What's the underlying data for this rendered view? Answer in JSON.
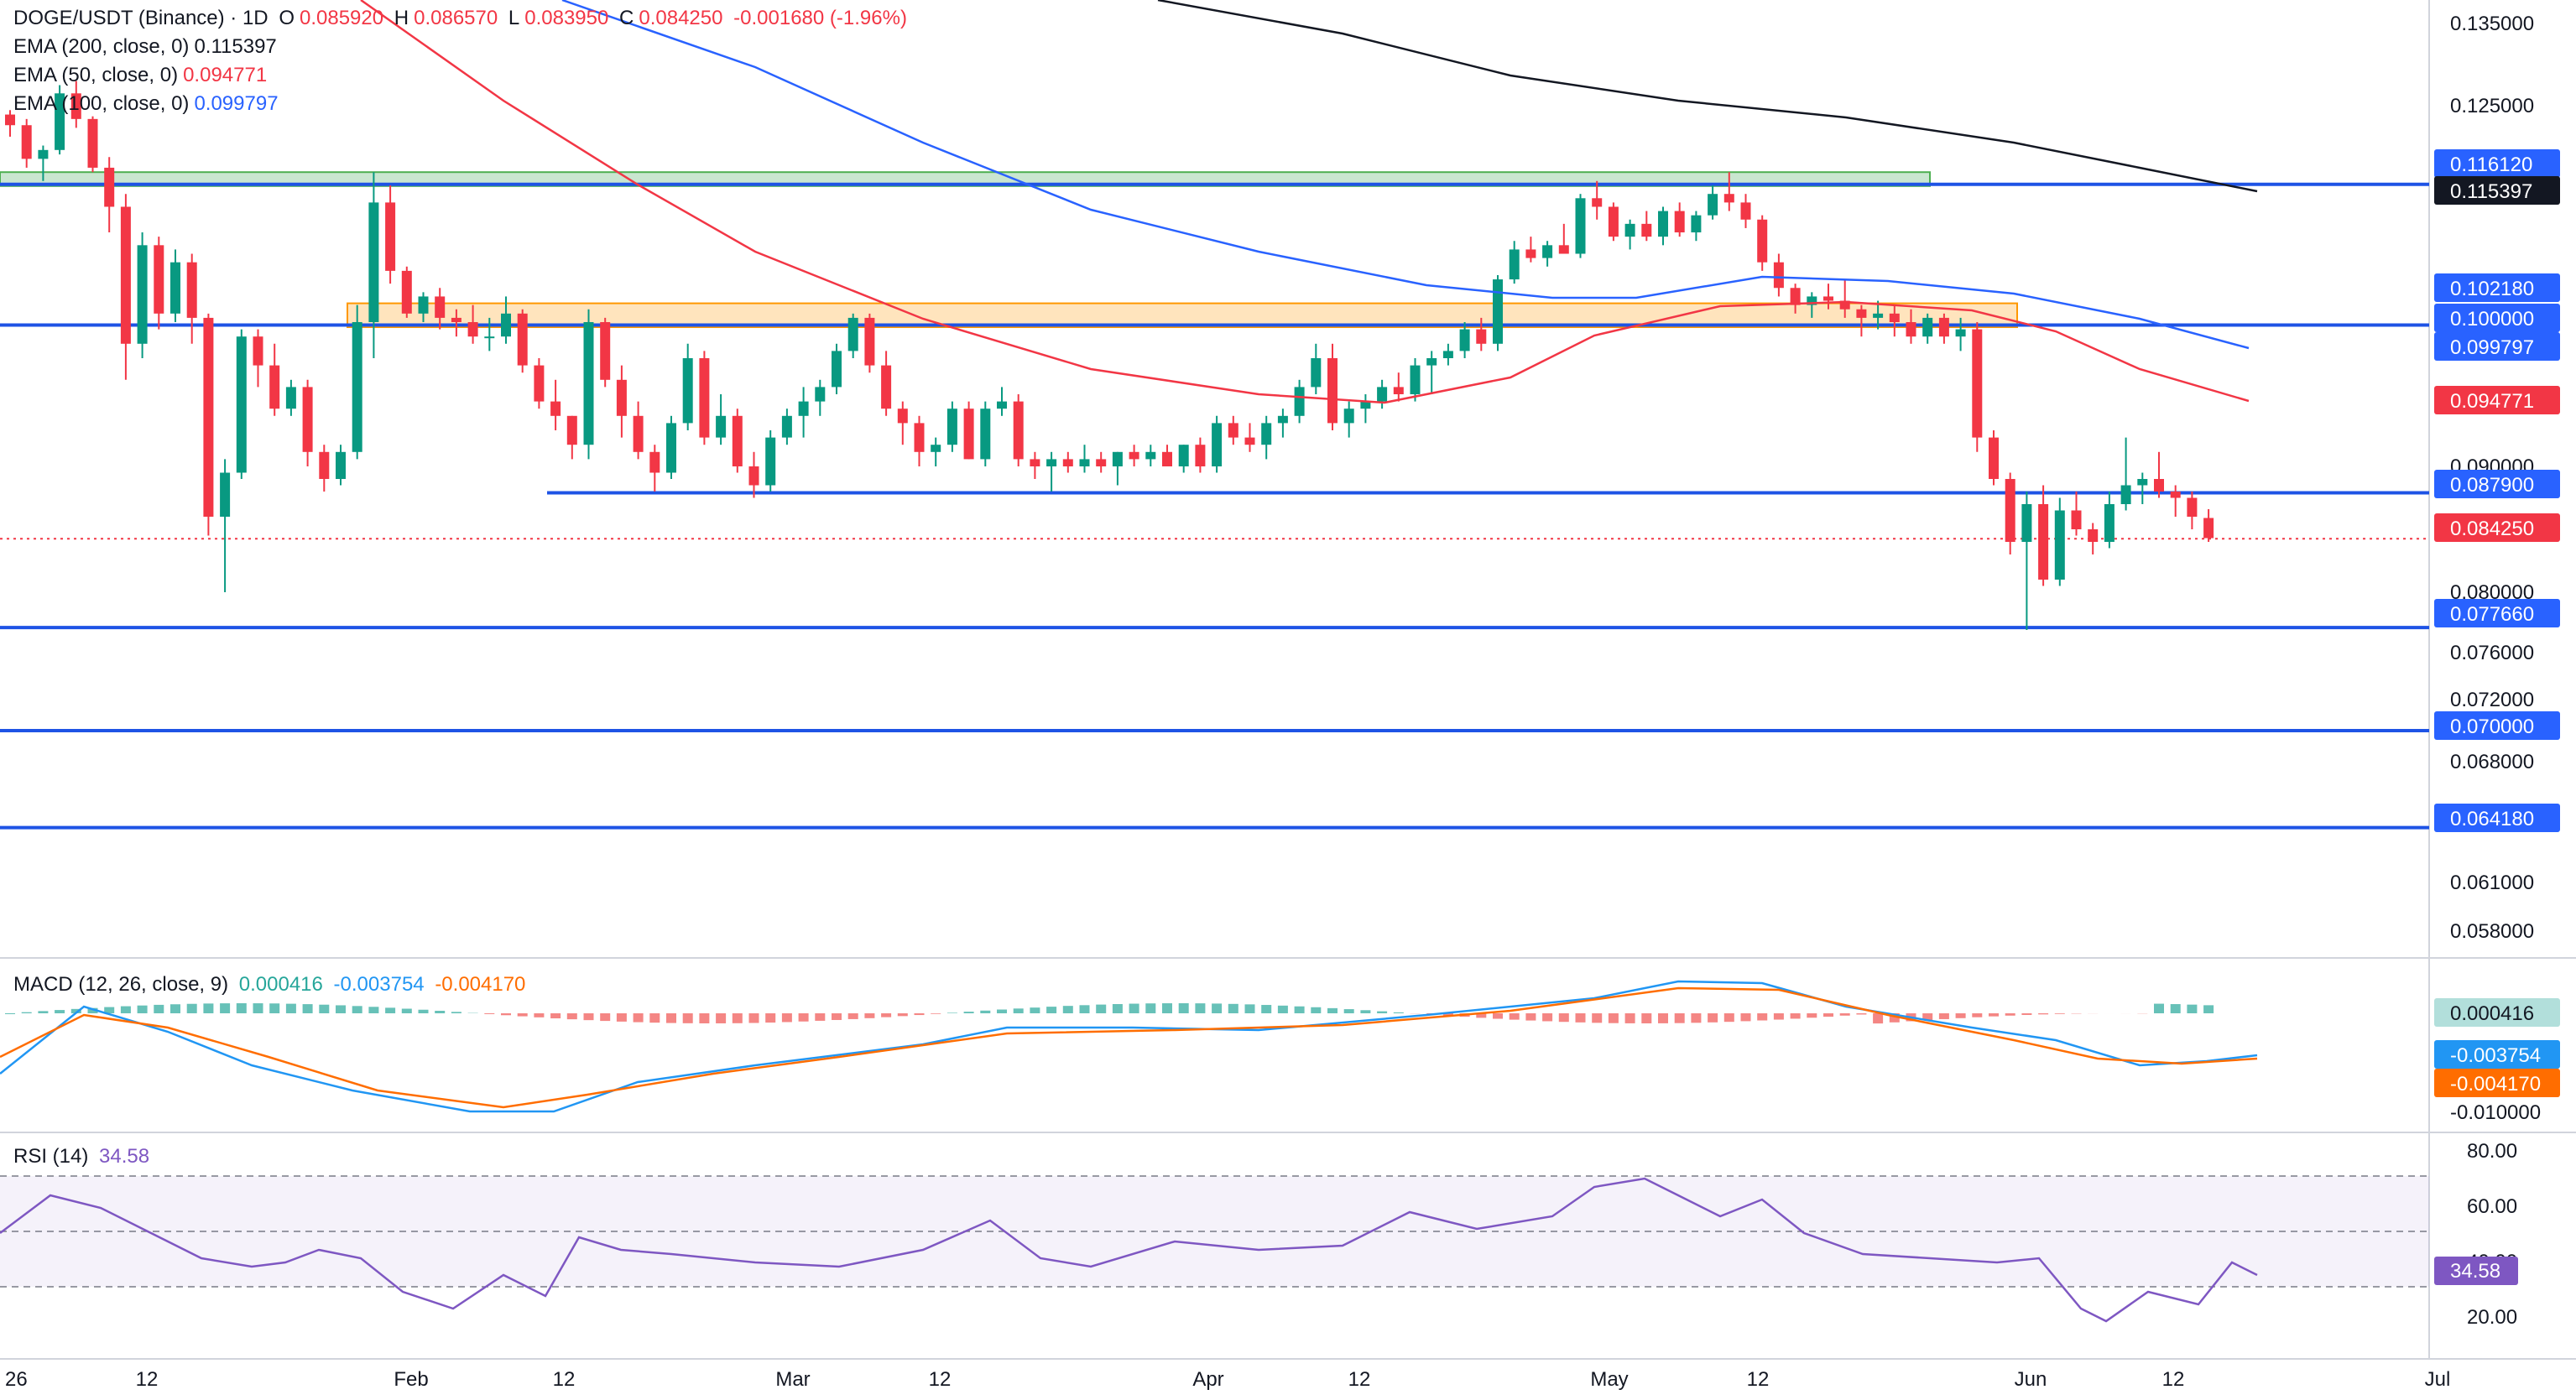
{
  "header": {
    "symbol": "DOGE/USDT (Binance) · 1D",
    "open_label": "O",
    "open": "0.085920",
    "high_label": "H",
    "high": "0.086570",
    "low_label": "L",
    "low": "0.083950",
    "close_label": "C",
    "close": "0.084250",
    "change": "-0.001680 (-1.96%)"
  },
  "indicators": {
    "ema200": {
      "label": "EMA (200, close, 0)",
      "value": "0.115397",
      "color": "#131722"
    },
    "ema50": {
      "label": "EMA (50, close, 0)",
      "value": "0.094771",
      "color": "#f23645"
    },
    "ema100": {
      "label": "EMA (100, close, 0)",
      "value": "0.099797",
      "color": "#2962ff"
    },
    "macd": {
      "label": "MACD (12, 26, close, 9)",
      "hist": "0.000416",
      "macd": "-0.003754",
      "signal": "-0.004170"
    },
    "rsi": {
      "label": "RSI (14)",
      "value": "34.58"
    }
  },
  "colors": {
    "up": "#089981",
    "down": "#f23645",
    "level_line": "#1e53e5",
    "ema200": "#131722",
    "ema50": "#f23645",
    "ema100": "#2962ff",
    "macd_line": "#2196f3",
    "signal_line": "#ff6d00",
    "rsi_line": "#7e57c2",
    "supply_zone": "#a5d6b0",
    "demand_zone": "#ffd59a"
  },
  "price_axis": {
    "ticks": [
      "0.135000",
      "0.125000",
      "0.090000",
      "0.080000",
      "0.076000",
      "0.072000",
      "0.068000",
      "0.061000",
      "0.058000"
    ],
    "labels": [
      {
        "text": "0.116120",
        "bg": "#2962ff",
        "fg": "#ffffff"
      },
      {
        "text": "0.115397",
        "bg": "#131722",
        "fg": "#ffffff"
      },
      {
        "text": "0.102180",
        "bg": "#2962ff",
        "fg": "#ffffff"
      },
      {
        "text": "0.100000",
        "bg": "#2962ff",
        "fg": "#ffffff"
      },
      {
        "text": "0.099797",
        "bg": "#2962ff",
        "fg": "#ffffff"
      },
      {
        "text": "0.094771",
        "bg": "#f23645",
        "fg": "#ffffff"
      },
      {
        "text": "0.087900",
        "bg": "#2962ff",
        "fg": "#ffffff"
      },
      {
        "text": "0.084250",
        "bg": "#f23645",
        "fg": "#ffffff"
      },
      {
        "text": "0.077660",
        "bg": "#2962ff",
        "fg": "#ffffff"
      },
      {
        "text": "0.070000",
        "bg": "#2962ff",
        "fg": "#ffffff"
      },
      {
        "text": "0.064180",
        "bg": "#2962ff",
        "fg": "#ffffff"
      }
    ]
  },
  "macd_axis": {
    "labels": [
      {
        "text": "0.000416",
        "bg": "#b2dfdb",
        "fg": "#131722"
      },
      {
        "text": "-0.003754",
        "bg": "#2196f3",
        "fg": "#ffffff"
      },
      {
        "text": "-0.004170",
        "bg": "#ff6d00",
        "fg": "#ffffff"
      }
    ],
    "ticks": [
      "-0.010000"
    ]
  },
  "rsi_axis": {
    "ticks": [
      "80.00",
      "60.00",
      "40.00",
      "20.00"
    ],
    "label": "34.58"
  },
  "time_axis": [
    "26",
    "12",
    "Feb",
    "12",
    "Mar",
    "12",
    "Apr",
    "12",
    "May",
    "12",
    "Jun",
    "12",
    "Jul"
  ],
  "chart_data": {
    "type": "candlestick",
    "levels": [
      0.11612,
      0.10218,
      0.1,
      0.099797,
      0.0879,
      0.07766,
      0.07,
      0.06418
    ],
    "zones": [
      {
        "name": "supply",
        "from": 0.11612,
        "to": 0.1175
      },
      {
        "name": "demand",
        "from": 0.09965,
        "to": 0.1022
      }
    ],
    "candles": [
      [
        0.124,
        0.1245,
        0.1215,
        0.1228
      ],
      [
        0.1228,
        0.1235,
        0.118,
        0.119
      ],
      [
        0.119,
        0.1205,
        0.1165,
        0.12
      ],
      [
        0.12,
        0.1275,
        0.1195,
        0.1265
      ],
      [
        0.1265,
        0.128,
        0.1225,
        0.1235
      ],
      [
        0.1235,
        0.1238,
        0.1175,
        0.118
      ],
      [
        0.118,
        0.1192,
        0.1105,
        0.1135
      ],
      [
        0.1135,
        0.115,
        0.096,
        0.0985
      ],
      [
        0.0985,
        0.1105,
        0.0975,
        0.109
      ],
      [
        0.109,
        0.11,
        0.0995,
        0.101
      ],
      [
        0.101,
        0.1085,
        0.1,
        0.107
      ],
      [
        0.107,
        0.108,
        0.0985,
        0.1005
      ],
      [
        0.1005,
        0.101,
        0.0845,
        0.086
      ],
      [
        0.086,
        0.0905,
        0.08,
        0.0895
      ],
      [
        0.0895,
        0.0995,
        0.089,
        0.099
      ],
      [
        0.099,
        0.0995,
        0.0955,
        0.097
      ],
      [
        0.097,
        0.0985,
        0.0935,
        0.094
      ],
      [
        0.094,
        0.096,
        0.0935,
        0.0955
      ],
      [
        0.0955,
        0.096,
        0.09,
        0.091
      ],
      [
        0.091,
        0.0915,
        0.088,
        0.089
      ],
      [
        0.089,
        0.0915,
        0.0885,
        0.091
      ],
      [
        0.091,
        0.102,
        0.0905,
        0.1
      ],
      [
        0.1,
        0.1175,
        0.0975,
        0.114
      ],
      [
        0.114,
        0.116,
        0.1045,
        0.106
      ],
      [
        0.106,
        0.1065,
        0.1005,
        0.101
      ],
      [
        0.101,
        0.1035,
        0.1,
        0.103
      ],
      [
        0.103,
        0.104,
        0.0995,
        0.1005
      ],
      [
        0.1005,
        0.1015,
        0.099,
        0.1
      ],
      [
        0.1,
        0.102,
        0.0985,
        0.099
      ],
      [
        0.099,
        0.1005,
        0.098,
        0.099
      ],
      [
        0.099,
        0.103,
        0.0985,
        0.101
      ],
      [
        0.101,
        0.1015,
        0.0965,
        0.097
      ],
      [
        0.097,
        0.0975,
        0.094,
        0.0945
      ],
      [
        0.0945,
        0.096,
        0.0925,
        0.0935
      ],
      [
        0.0935,
        0.0935,
        0.0905,
        0.0915
      ],
      [
        0.0915,
        0.1015,
        0.0905,
        0.1
      ],
      [
        0.1,
        0.1005,
        0.0955,
        0.096
      ],
      [
        0.096,
        0.097,
        0.092,
        0.0935
      ],
      [
        0.0935,
        0.0945,
        0.0905,
        0.091
      ],
      [
        0.091,
        0.0915,
        0.088,
        0.0895
      ],
      [
        0.0895,
        0.0935,
        0.089,
        0.093
      ],
      [
        0.093,
        0.0985,
        0.0925,
        0.0975
      ],
      [
        0.0975,
        0.098,
        0.0915,
        0.092
      ],
      [
        0.092,
        0.095,
        0.0915,
        0.0935
      ],
      [
        0.0935,
        0.094,
        0.0895,
        0.09
      ],
      [
        0.09,
        0.091,
        0.0875,
        0.0885
      ],
      [
        0.0885,
        0.0925,
        0.088,
        0.092
      ],
      [
        0.092,
        0.094,
        0.0915,
        0.0935
      ],
      [
        0.0935,
        0.0955,
        0.092,
        0.0945
      ],
      [
        0.0945,
        0.096,
        0.0935,
        0.0955
      ],
      [
        0.0955,
        0.0985,
        0.095,
        0.098
      ],
      [
        0.098,
        0.101,
        0.0975,
        0.1005
      ],
      [
        0.1005,
        0.101,
        0.0965,
        0.097
      ],
      [
        0.097,
        0.098,
        0.0935,
        0.094
      ],
      [
        0.094,
        0.0945,
        0.0915,
        0.093
      ],
      [
        0.093,
        0.0935,
        0.09,
        0.091
      ],
      [
        0.091,
        0.092,
        0.09,
        0.0915
      ],
      [
        0.0915,
        0.0945,
        0.091,
        0.094
      ],
      [
        0.094,
        0.0945,
        0.0905,
        0.0905
      ],
      [
        0.0905,
        0.0945,
        0.09,
        0.094
      ],
      [
        0.094,
        0.0955,
        0.0935,
        0.0945
      ],
      [
        0.0945,
        0.095,
        0.09,
        0.0905
      ],
      [
        0.0905,
        0.091,
        0.089,
        0.09
      ],
      [
        0.09,
        0.091,
        0.088,
        0.0905
      ],
      [
        0.0905,
        0.091,
        0.0895,
        0.09
      ],
      [
        0.09,
        0.0915,
        0.0895,
        0.0905
      ],
      [
        0.0905,
        0.091,
        0.0895,
        0.09
      ],
      [
        0.09,
        0.091,
        0.0885,
        0.091
      ],
      [
        0.091,
        0.0915,
        0.09,
        0.0905
      ],
      [
        0.0905,
        0.0915,
        0.09,
        0.091
      ],
      [
        0.091,
        0.0915,
        0.09,
        0.09
      ],
      [
        0.09,
        0.0915,
        0.0895,
        0.0915
      ],
      [
        0.0915,
        0.092,
        0.0895,
        0.09
      ],
      [
        0.09,
        0.0935,
        0.0895,
        0.093
      ],
      [
        0.093,
        0.0935,
        0.0915,
        0.092
      ],
      [
        0.092,
        0.093,
        0.091,
        0.0915
      ],
      [
        0.0915,
        0.0935,
        0.0905,
        0.093
      ],
      [
        0.093,
        0.094,
        0.092,
        0.0935
      ],
      [
        0.0935,
        0.096,
        0.093,
        0.0955
      ],
      [
        0.0955,
        0.0985,
        0.095,
        0.0975
      ],
      [
        0.0975,
        0.0985,
        0.0925,
        0.093
      ],
      [
        0.093,
        0.0945,
        0.092,
        0.094
      ],
      [
        0.094,
        0.095,
        0.093,
        0.0945
      ],
      [
        0.0945,
        0.096,
        0.094,
        0.0955
      ],
      [
        0.0955,
        0.0965,
        0.0945,
        0.095
      ],
      [
        0.095,
        0.0975,
        0.0945,
        0.097
      ],
      [
        0.097,
        0.098,
        0.095,
        0.0975
      ],
      [
        0.0975,
        0.0985,
        0.097,
        0.098
      ],
      [
        0.098,
        0.1,
        0.0975,
        0.0995
      ],
      [
        0.0995,
        0.1005,
        0.098,
        0.0985
      ],
      [
        0.0985,
        0.1055,
        0.098,
        0.105
      ],
      [
        0.105,
        0.1095,
        0.1045,
        0.1085
      ],
      [
        0.1085,
        0.11,
        0.107,
        0.1075
      ],
      [
        0.1075,
        0.1095,
        0.1065,
        0.109
      ],
      [
        0.109,
        0.1115,
        0.1085,
        0.108
      ],
      [
        0.108,
        0.115,
        0.1075,
        0.1145
      ],
      [
        0.1145,
        0.1165,
        0.112,
        0.1135
      ],
      [
        0.1135,
        0.114,
        0.1095,
        0.11
      ],
      [
        0.11,
        0.112,
        0.1085,
        0.1115
      ],
      [
        0.1115,
        0.113,
        0.1095,
        0.11
      ],
      [
        0.11,
        0.1135,
        0.109,
        0.113
      ],
      [
        0.113,
        0.114,
        0.11,
        0.1105
      ],
      [
        0.1105,
        0.113,
        0.1095,
        0.1125
      ],
      [
        0.1125,
        0.116,
        0.112,
        0.115
      ],
      [
        0.115,
        0.1175,
        0.113,
        0.114
      ],
      [
        0.114,
        0.115,
        0.111,
        0.112
      ],
      [
        0.112,
        0.1125,
        0.106,
        0.107
      ],
      [
        0.107,
        0.108,
        0.103,
        0.104
      ],
      [
        0.104,
        0.1045,
        0.101,
        0.102
      ],
      [
        0.102,
        0.1035,
        0.1005,
        0.103
      ],
      [
        0.103,
        0.1045,
        0.1015,
        0.1025
      ],
      [
        0.1025,
        0.105,
        0.1005,
        0.1015
      ],
      [
        0.1015,
        0.102,
        0.099,
        0.1005
      ],
      [
        0.1005,
        0.1025,
        0.0995,
        0.101
      ],
      [
        0.101,
        0.102,
        0.099,
        0.1
      ],
      [
        0.1,
        0.1015,
        0.0985,
        0.099
      ],
      [
        0.099,
        0.101,
        0.0985,
        0.1005
      ],
      [
        0.1005,
        0.101,
        0.0985,
        0.099
      ],
      [
        0.099,
        0.1005,
        0.098,
        0.0995
      ],
      [
        0.0995,
        0.1,
        0.091,
        0.092
      ],
      [
        0.092,
        0.0925,
        0.0885,
        0.089
      ],
      [
        0.089,
        0.0895,
        0.083,
        0.084
      ],
      [
        0.084,
        0.088,
        0.0775,
        0.087
      ],
      [
        0.087,
        0.0885,
        0.0805,
        0.081
      ],
      [
        0.081,
        0.0875,
        0.0805,
        0.0865
      ],
      [
        0.0865,
        0.088,
        0.0845,
        0.085
      ],
      [
        0.085,
        0.0855,
        0.083,
        0.084
      ],
      [
        0.084,
        0.088,
        0.0835,
        0.087
      ],
      [
        0.087,
        0.092,
        0.0865,
        0.0885
      ],
      [
        0.0885,
        0.0895,
        0.087,
        0.089
      ],
      [
        0.089,
        0.091,
        0.0875,
        0.088
      ],
      [
        0.088,
        0.0885,
        0.086,
        0.0875
      ],
      [
        0.0875,
        0.088,
        0.085,
        0.086
      ],
      [
        0.0859,
        0.0866,
        0.084,
        0.0843
      ]
    ]
  }
}
